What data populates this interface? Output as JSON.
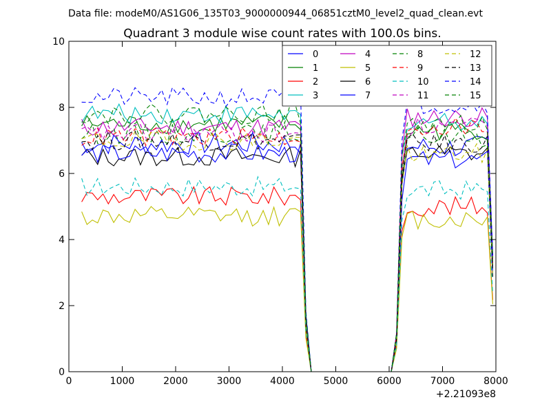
{
  "suptitle": "Data file: modeM0/AS1G06_135T03_9000000944_06851cztM0_level2_quad_clean.evt",
  "chart_data": {
    "type": "line",
    "title": "Quadrant 3 module wise count rates with 100.0s bins.",
    "xlabel": "",
    "ylabel": "",
    "x_offset_label": "+2.21093e8",
    "xlim": [
      0,
      8000
    ],
    "ylim": [
      0,
      10
    ],
    "xticks": [
      "0",
      "1000",
      "2000",
      "3000",
      "4000",
      "5000",
      "6000",
      "7000",
      "8000"
    ],
    "yticks": [
      "0",
      "2",
      "4",
      "6",
      "8",
      "10"
    ],
    "grid": false,
    "legend_position": "top-right",
    "legend_columns": 4,
    "x": [
      240,
      340,
      440,
      540,
      640,
      740,
      840,
      940,
      1040,
      1140,
      1240,
      1340,
      1440,
      1540,
      1640,
      1740,
      1840,
      1940,
      2040,
      2140,
      2240,
      2340,
      2440,
      2540,
      2640,
      2740,
      2840,
      2940,
      3040,
      3140,
      3240,
      3340,
      3440,
      3540,
      3640,
      3740,
      3840,
      3940,
      4040,
      4140,
      4240,
      4340,
      4440,
      4540,
      4640,
      4740,
      4840,
      4940,
      5040,
      5140,
      5240,
      5340,
      5440,
      5540,
      5640,
      5740,
      5840,
      5940,
      6040,
      6140,
      6240,
      6340,
      6440,
      6540,
      6640,
      6740,
      6840,
      6940,
      7040,
      7140,
      7240,
      7340,
      7440,
      7540,
      7640,
      7740,
      7840,
      7940
    ],
    "shape": [
      1.0,
      1.0,
      1.0,
      1.0,
      1.0,
      1.0,
      1.0,
      1.0,
      1.0,
      1.0,
      1.0,
      1.0,
      1.0,
      1.0,
      1.0,
      1.0,
      1.0,
      1.0,
      1.0,
      1.0,
      1.0,
      1.0,
      1.0,
      1.0,
      1.0,
      1.0,
      1.0,
      1.0,
      1.0,
      1.0,
      1.0,
      1.0,
      1.0,
      1.0,
      1.0,
      1.0,
      1.0,
      1.0,
      1.0,
      1.0,
      1.0,
      1.0,
      0.22,
      0.0,
      0.0,
      0.0,
      0.0,
      0.0,
      0.0,
      0.0,
      0.0,
      0.0,
      0.0,
      0.0,
      0.0,
      0.0,
      0.0,
      0.0,
      0.0,
      0.15,
      0.85,
      1.0,
      1.0,
      1.0,
      1.0,
      1.0,
      1.0,
      1.0,
      1.0,
      1.0,
      1.0,
      1.0,
      1.0,
      1.0,
      1.0,
      1.0,
      1.0,
      0.45
    ],
    "series": [
      {
        "name": "0",
        "color": "#0000ff",
        "dash": "solid",
        "mean1": 6.9,
        "mean2": 6.8,
        "noise": 0.35
      },
      {
        "name": "1",
        "color": "#008000",
        "dash": "solid",
        "mean1": 7.5,
        "mean2": 7.3,
        "noise": 0.3
      },
      {
        "name": "2",
        "color": "#ff0000",
        "dash": "solid",
        "mean1": 5.3,
        "mean2": 5.0,
        "noise": 0.3
      },
      {
        "name": "3",
        "color": "#00bfbf",
        "dash": "solid",
        "mean1": 7.8,
        "mean2": 7.6,
        "noise": 0.3
      },
      {
        "name": "4",
        "color": "#bf00bf",
        "dash": "solid",
        "mean1": 7.4,
        "mean2": 7.7,
        "noise": 0.3
      },
      {
        "name": "5",
        "color": "#bfbf00",
        "dash": "solid",
        "mean1": 4.7,
        "mean2": 4.6,
        "noise": 0.3
      },
      {
        "name": "6",
        "color": "#000000",
        "dash": "solid",
        "mean1": 6.5,
        "mean2": 6.6,
        "noise": 0.3
      },
      {
        "name": "7",
        "color": "#0000ff",
        "dash": "solid",
        "mean1": 6.6,
        "mean2": 6.4,
        "noise": 0.3
      },
      {
        "name": "8",
        "color": "#008000",
        "dash": "dashed",
        "mean1": 7.2,
        "mean2": 7.1,
        "noise": 0.3
      },
      {
        "name": "9",
        "color": "#ff0000",
        "dash": "dashed",
        "mean1": 7.1,
        "mean2": 7.4,
        "noise": 0.3
      },
      {
        "name": "10",
        "color": "#00bfbf",
        "dash": "dashed",
        "mean1": 5.6,
        "mean2": 5.5,
        "noise": 0.3
      },
      {
        "name": "11",
        "color": "#bf00bf",
        "dash": "dashed",
        "mean1": 7.2,
        "mean2": 7.4,
        "noise": 0.3
      },
      {
        "name": "12",
        "color": "#bfbf00",
        "dash": "dashed",
        "mean1": 7.0,
        "mean2": 6.6,
        "noise": 0.3
      },
      {
        "name": "13",
        "color": "#000000",
        "dash": "dashed",
        "mean1": 7.0,
        "mean2": 6.9,
        "noise": 0.3
      },
      {
        "name": "14",
        "color": "#0000ff",
        "dash": "dashed",
        "mean1": 8.3,
        "mean2": 8.1,
        "noise": 0.3
      },
      {
        "name": "15",
        "color": "#008000",
        "dash": "dashed",
        "mean1": 7.8,
        "mean2": 7.5,
        "noise": 0.3
      }
    ]
  }
}
